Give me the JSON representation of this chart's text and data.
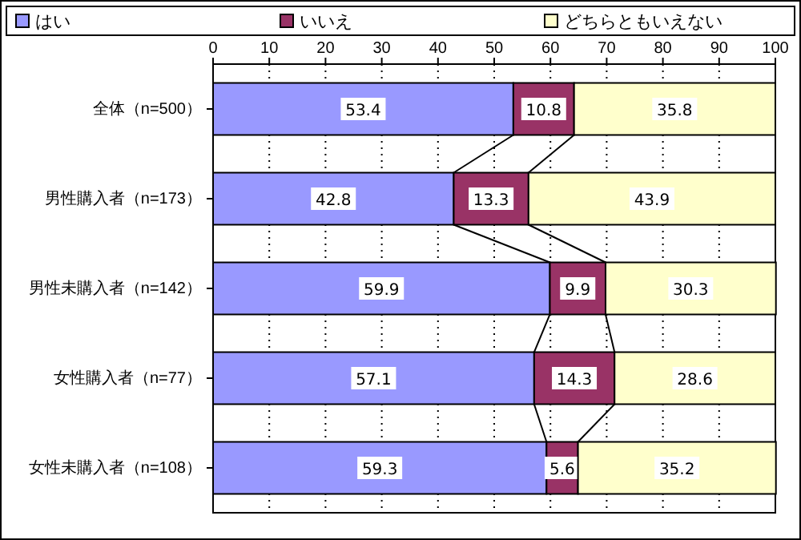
{
  "chart_data": {
    "type": "bar",
    "orientation": "horizontal",
    "stacked": true,
    "categories": [
      "全体（n=500）",
      "男性購入者（n=173）",
      "男性未購入者（n=142）",
      "女性購入者（n=77）",
      "女性未購入者（n=108）"
    ],
    "series": [
      {
        "name": "はい",
        "color": "#9999ff",
        "values": [
          53.4,
          42.8,
          59.9,
          57.1,
          59.3
        ]
      },
      {
        "name": "いいえ",
        "color": "#993366",
        "values": [
          10.8,
          13.3,
          9.9,
          14.3,
          5.6
        ]
      },
      {
        "name": "どちらともいえない",
        "color": "#ffffcc",
        "values": [
          35.8,
          43.9,
          30.3,
          28.6,
          35.2
        ]
      }
    ],
    "xlim": [
      0,
      100
    ],
    "xticks": [
      0,
      10,
      20,
      30,
      40,
      50,
      60,
      70,
      80,
      90,
      100
    ],
    "grid": "x",
    "legend": "top",
    "data_labels": true
  }
}
